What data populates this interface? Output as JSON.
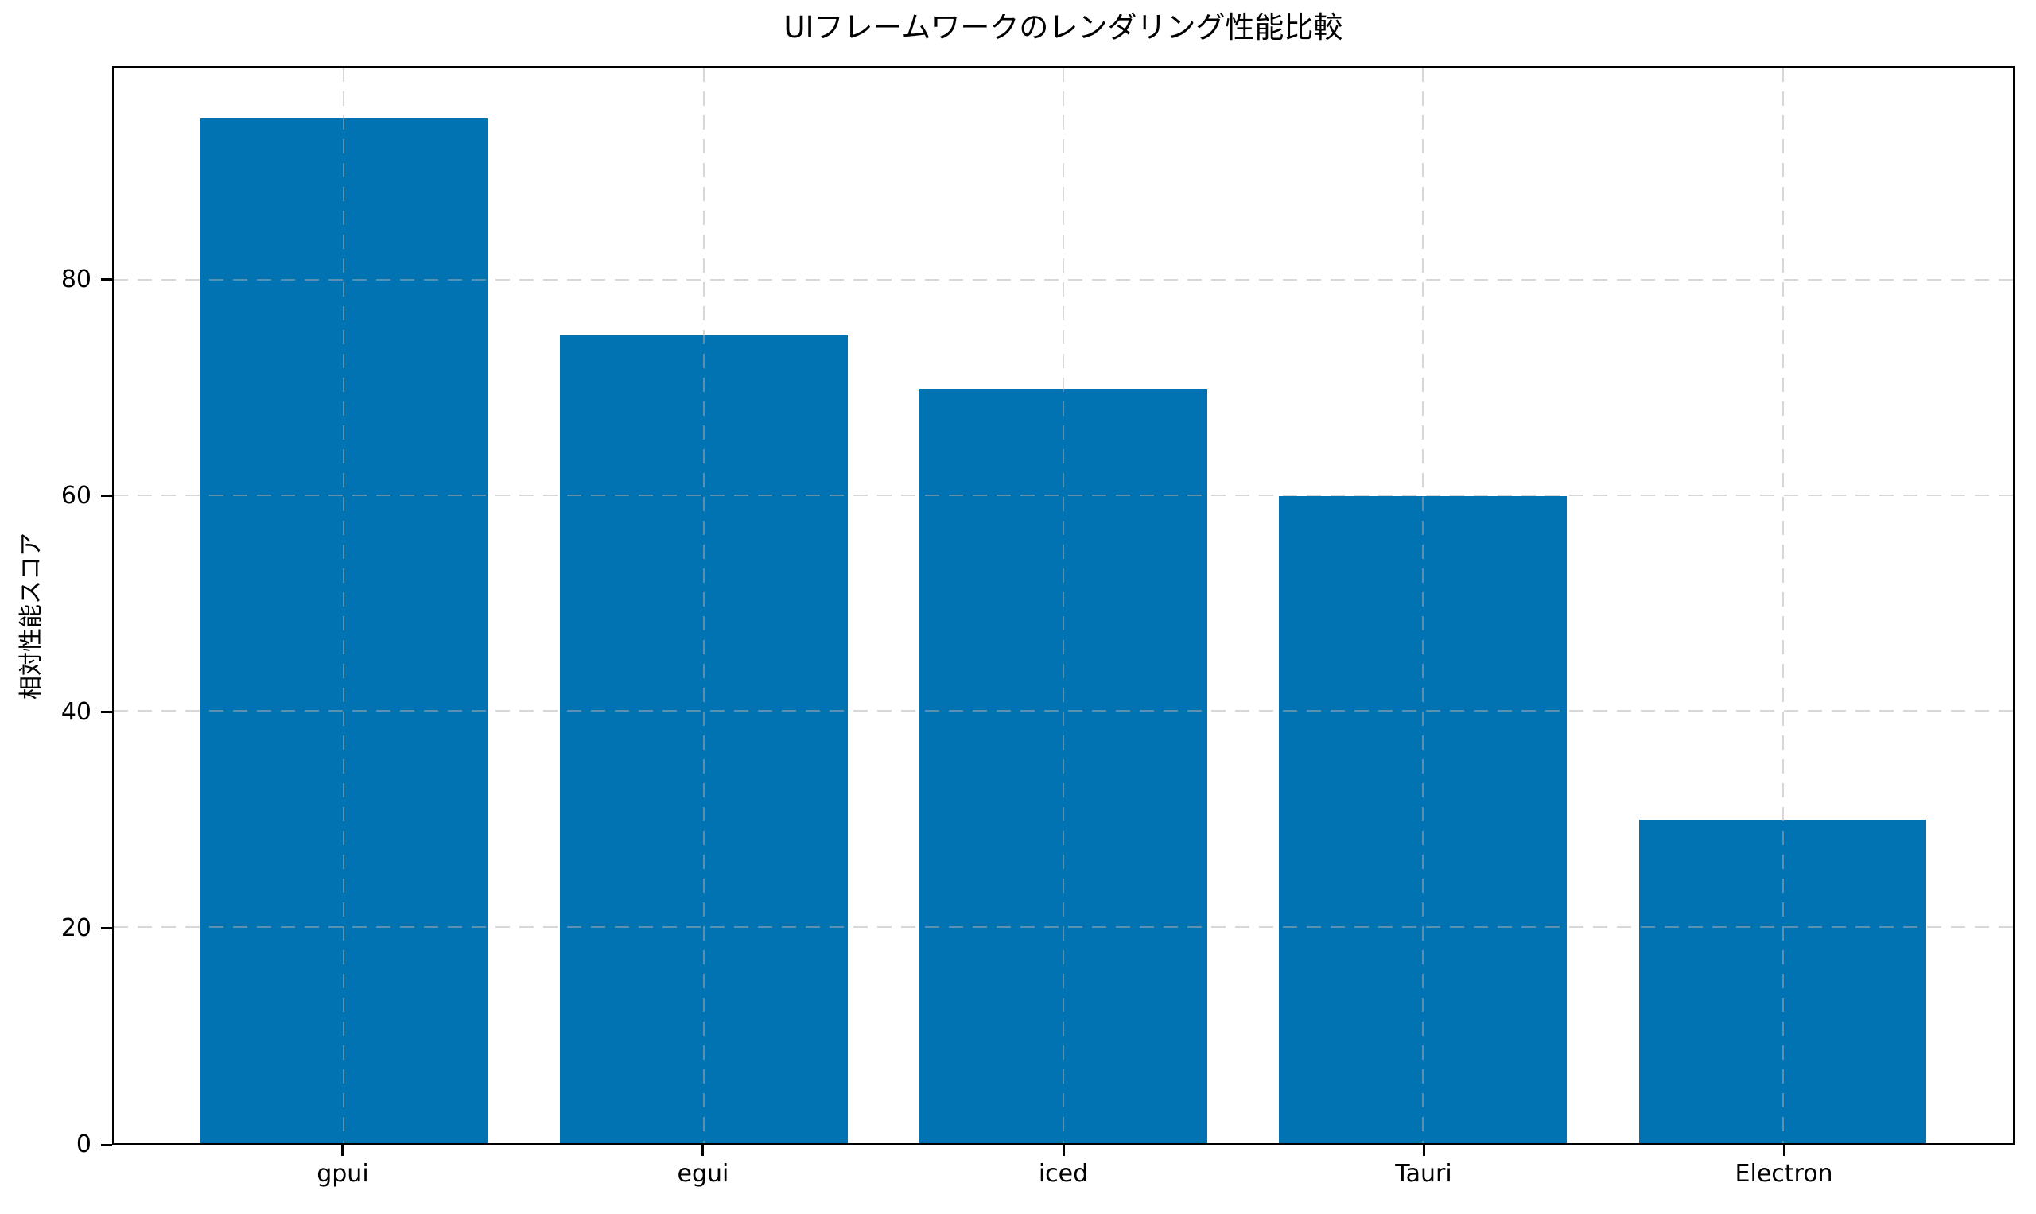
{
  "figure": {
    "background_color": "#ffffff",
    "bar_color": "#0273b2",
    "grid_color_rgba": "rgba(176,176,176,0.5)",
    "spine_color": "#000000",
    "text_color": "#000000"
  },
  "chart_data": {
    "type": "bar",
    "title": "UIフレームワークのレンダリング性能比較",
    "xlabel": "",
    "ylabel": "相対性能スコア",
    "categories": [
      "gpui",
      "egui",
      "iced",
      "Tauri",
      "Electron"
    ],
    "values": [
      95,
      75,
      70,
      60,
      30
    ],
    "yticks": [
      0,
      20,
      40,
      60,
      80
    ],
    "ylim": [
      0,
      99.75
    ],
    "x_margin_units": 0.64,
    "bar_width_fraction": 0.8,
    "grid": "dashed horizontal and vertical, drawn above bars",
    "legend": "none"
  }
}
